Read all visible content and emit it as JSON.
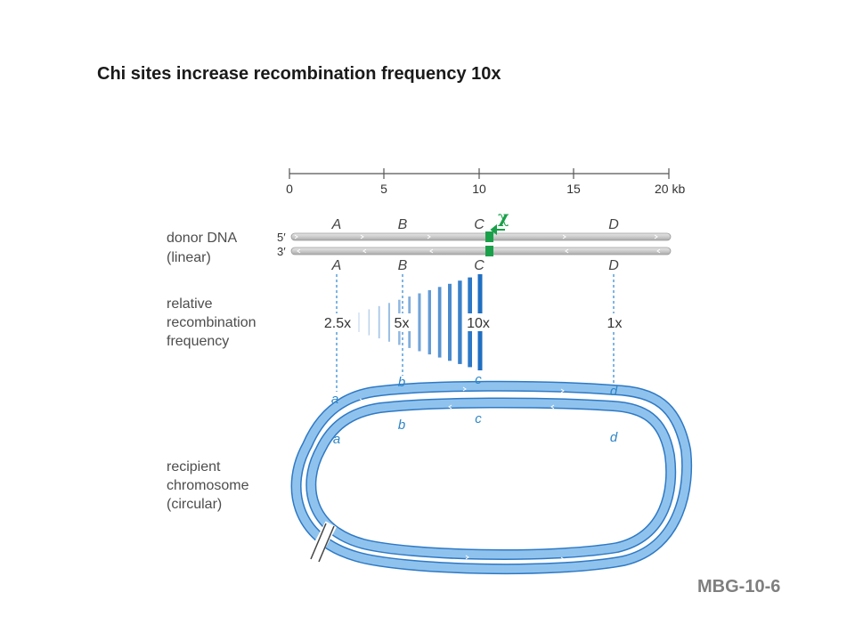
{
  "title": "Chi sites increase recombination frequency 10x",
  "figure_code": "MBG-10-6",
  "scale": {
    "ticks": [
      "0",
      "5",
      "10",
      "15",
      "20 kb"
    ]
  },
  "labels": {
    "donor": [
      "donor DNA",
      "(linear)"
    ],
    "frequency": [
      "relative",
      "recombination",
      "frequency"
    ],
    "recipient": [
      "recipient",
      "chromosome",
      "(circular)"
    ]
  },
  "strand_ends": {
    "top": "5′",
    "bottom": "3′"
  },
  "chi_symbol": "χ",
  "genes_upper": [
    "A",
    "B",
    "C",
    "D"
  ],
  "genes_lower": [
    "A",
    "B",
    "C",
    "D"
  ],
  "alleles_outer": [
    "a",
    "b",
    "c",
    "d"
  ],
  "alleles_inner": [
    "a",
    "b",
    "c",
    "d"
  ],
  "frequencies": [
    "2.5x",
    "5x",
    "10x",
    "1x"
  ],
  "colors": {
    "donor_strand": "#cfcfcf",
    "chi_site": "#1aa04a",
    "recipient": "#5b9bd5",
    "gradient": "#1f6fc2"
  }
}
